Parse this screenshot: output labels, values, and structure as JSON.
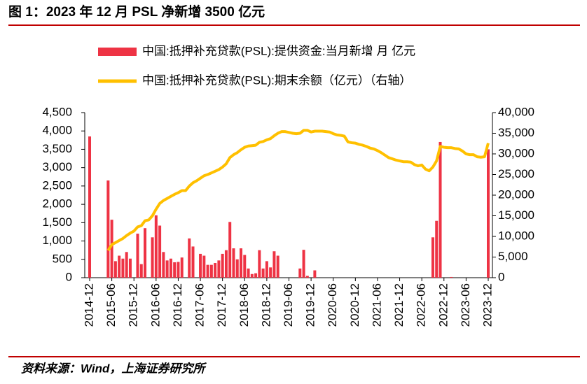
{
  "chart_data": {
    "type": "bar_line",
    "title": "图 1：2023 年 12 月 PSL 净新增 3500 亿元",
    "source": "资料来源：Wind，上海证券研究所",
    "categories": [
      "2014-12",
      null,
      null,
      null,
      null,
      null,
      "2015-06",
      null,
      null,
      null,
      null,
      null,
      "2015-12",
      null,
      null,
      null,
      null,
      null,
      "2016-06",
      null,
      null,
      null,
      null,
      null,
      "2016-12",
      null,
      null,
      null,
      null,
      null,
      "2017-06",
      null,
      null,
      null,
      null,
      null,
      "2017-12",
      null,
      null,
      null,
      null,
      null,
      "2018-06",
      null,
      null,
      null,
      null,
      null,
      "2018-12",
      null,
      null,
      null,
      null,
      null,
      "2019-06",
      null,
      null,
      null,
      null,
      null,
      "2019-12",
      null,
      null,
      null,
      null,
      null,
      "2020-06",
      null,
      null,
      null,
      null,
      null,
      "2020-12",
      null,
      null,
      null,
      null,
      null,
      "2021-06",
      null,
      null,
      null,
      null,
      null,
      "2021-12",
      null,
      null,
      null,
      null,
      null,
      "2022-06",
      null,
      null,
      null,
      null,
      null,
      "2022-12",
      null,
      null,
      null,
      null,
      null,
      "2023-06",
      null,
      null,
      null,
      null,
      null,
      "2023-12"
    ],
    "series": [
      {
        "name": "中国:抵押补充贷款(PSL):提供资金:当月新增 月 亿元",
        "type": "bar",
        "color": "#ee3344",
        "values": [
          3850,
          0,
          0,
          0,
          0,
          2650,
          1580,
          450,
          600,
          520,
          700,
          520,
          0,
          1200,
          370,
          1350,
          0,
          1100,
          1700,
          1420,
          700,
          470,
          520,
          420,
          430,
          550,
          0,
          1070,
          850,
          0,
          650,
          600,
          350,
          350,
          400,
          470,
          650,
          750,
          1520,
          800,
          500,
          800,
          620,
          250,
          100,
          120,
          750,
          250,
          450,
          280,
          720,
          600,
          0,
          0,
          0,
          0,
          0,
          250,
          760,
          50,
          0,
          200,
          0,
          0,
          0,
          0,
          0,
          0,
          0,
          0,
          0,
          0,
          0,
          0,
          0,
          0,
          0,
          0,
          0,
          0,
          0,
          0,
          0,
          0,
          0,
          0,
          0,
          0,
          0,
          0,
          0,
          0,
          0,
          1100,
          1550,
          3700,
          0,
          0,
          20,
          0,
          0,
          0,
          0,
          0,
          0,
          0,
          0,
          0,
          3500
        ]
      },
      {
        "name": "中国:抵押补充贷款(PSL):期末余额（亿元）（右轴）",
        "type": "line",
        "axis": "y2",
        "color": "#ffc000",
        "values": [
          null,
          null,
          null,
          null,
          null,
          6600,
          8000,
          8500,
          9000,
          9500,
          10200,
          10800,
          11300,
          12300,
          12600,
          13800,
          14000,
          15000,
          16600,
          18000,
          18700,
          19200,
          19700,
          20200,
          20600,
          21100,
          21100,
          22200,
          23000,
          23500,
          24100,
          24700,
          25000,
          25400,
          25800,
          26200,
          26800,
          27600,
          29100,
          29800,
          30300,
          31000,
          31600,
          31900,
          32000,
          32100,
          32800,
          33000,
          33400,
          33700,
          34400,
          35000,
          35400,
          35400,
          35200,
          35000,
          34900,
          35000,
          35700,
          35700,
          35300,
          35500,
          35500,
          35500,
          35400,
          35300,
          34900,
          34600,
          34500,
          34300,
          32900,
          32700,
          32600,
          32300,
          32100,
          31800,
          31400,
          31200,
          30800,
          30300,
          29700,
          29100,
          28800,
          28500,
          28300,
          28100,
          28100,
          28000,
          27400,
          27100,
          27300,
          26300,
          25900,
          26800,
          28300,
          31800,
          31600,
          31500,
          31500,
          31300,
          31200,
          30700,
          30000,
          29800,
          29800,
          29300,
          29200,
          29300,
          32600
        ]
      }
    ],
    "ylim": [
      0,
      4500
    ],
    "yticks": [
      0,
      500,
      {
        "value": 1000,
        "label": "1,000"
      },
      {
        "value": 1500,
        "label": "1,500"
      },
      {
        "value": 2000,
        "label": "2,000"
      },
      {
        "value": 2500,
        "label": "2,500"
      },
      {
        "value": 3000,
        "label": "3,000"
      },
      {
        "value": 3500,
        "label": "3,500"
      },
      {
        "value": 4000,
        "label": "4,000"
      },
      {
        "value": 4500,
        "label": "4,500"
      }
    ],
    "y2lim": [
      0,
      40000
    ],
    "y2ticks": [
      0,
      {
        "value": 5000,
        "label": "5,000"
      },
      {
        "value": 10000,
        "label": "10,000"
      },
      {
        "value": 15000,
        "label": "15,000"
      },
      {
        "value": 20000,
        "label": "20,000"
      },
      {
        "value": 25000,
        "label": "25,000"
      },
      {
        "value": 30000,
        "label": "30,000"
      },
      {
        "value": 35000,
        "label": "35,000"
      },
      {
        "value": 40000,
        "label": "40,000"
      }
    ],
    "grid": false
  }
}
